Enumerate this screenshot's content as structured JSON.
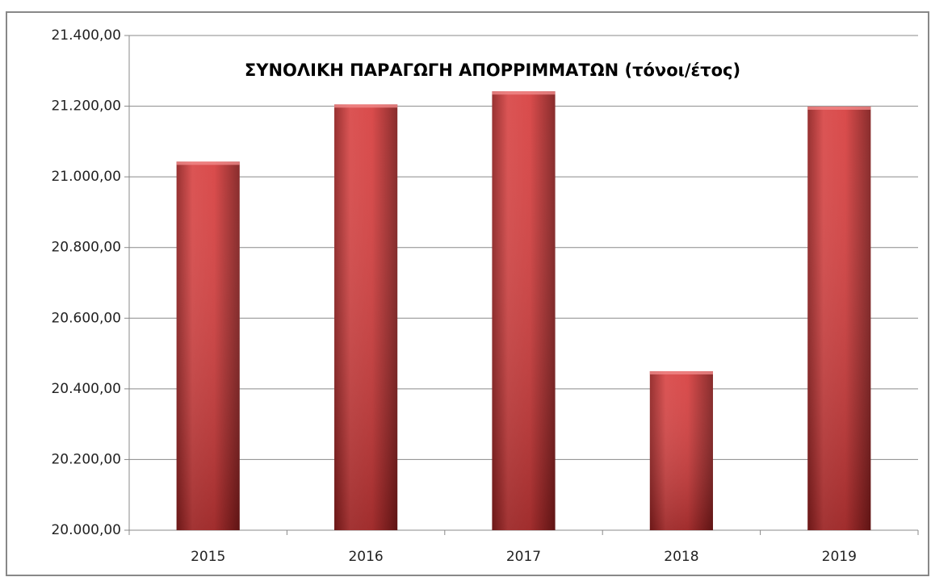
{
  "chart_data": {
    "type": "bar",
    "title": "ΣΥΝΟΛΙΚΗ ΠΑΡΑΓΩΓΗ ΑΠΟΡΡΙΜΜΑΤΩΝ (τόνοι/έτος)",
    "categories": [
      "2015",
      "2016",
      "2017",
      "2018",
      "2019"
    ],
    "values": [
      21043,
      21205,
      21242,
      20450,
      21199
    ],
    "color": "#d23a3a",
    "ylim": [
      20000,
      21400
    ],
    "yticks": [
      {
        "value": 20000,
        "label": "20.000,00"
      },
      {
        "value": 20200,
        "label": "20.200,00"
      },
      {
        "value": 20400,
        "label": "20.400,00"
      },
      {
        "value": 20600,
        "label": "20.600,00"
      },
      {
        "value": 20800,
        "label": "20.800,00"
      },
      {
        "value": 21000,
        "label": "21.000,00"
      },
      {
        "value": 21200,
        "label": "21.200,00"
      },
      {
        "value": 21400,
        "label": "21.400,00"
      }
    ],
    "grid": true
  }
}
